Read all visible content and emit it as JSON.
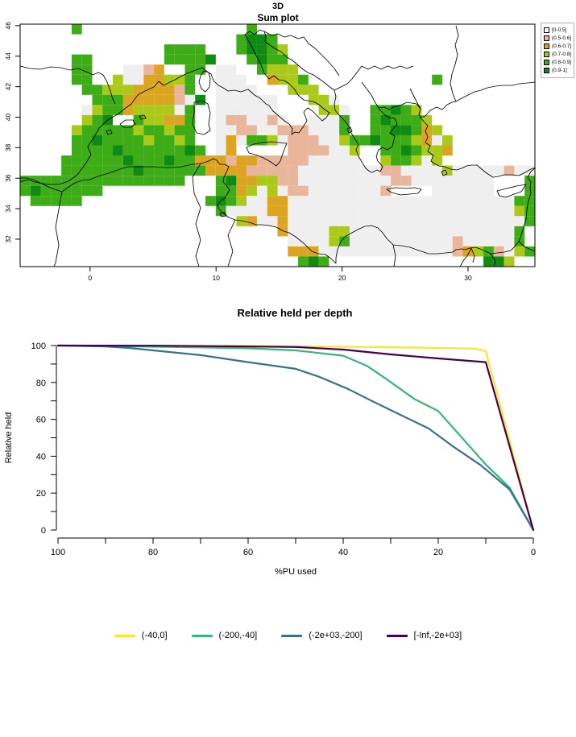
{
  "map": {
    "title_line1": "3D",
    "title_line2": "Sum plot",
    "x_ticks": [
      0,
      10,
      20,
      30
    ],
    "y_ticks": [
      46,
      44,
      42,
      40,
      38,
      36,
      34,
      32
    ],
    "palette": {
      "W": "#EFEFEF",
      "S": "#E9B59B",
      "O": "#DCA521",
      "Y": "#ABC918",
      "G": "#3EAC16",
      "D": "#0F8A12"
    },
    "legend": [
      {
        "label": "[0-0.5]",
        "color": "#FFFFFF"
      },
      {
        "label": "(0.5-0.6]",
        "color": "#E9B59B"
      },
      {
        "label": "(0.6-0.7]",
        "color": "#DCA521"
      },
      {
        "label": "(0.7-0.8]",
        "color": "#ABC918"
      },
      {
        "label": "(0.8-0.9]",
        "color": "#3EAC16"
      },
      {
        "label": "(0.9-1]",
        "color": "#0F8A12"
      }
    ],
    "grid": [
      [
        ".....G....",
        "..........",
        "..G.......",
        "..........",
        ".........."
      ],
      [
        "..........",
        "..........",
        ".GDDG.....",
        "..........",
        ".........."
      ],
      [
        "..........",
        "....GGGG..",
        ".GDDGY....",
        "..........",
        ".........."
      ],
      [
        ".....GG...",
        "....GGGGD.",
        "..GDGG....",
        "..........",
        ".........."
      ],
      [
        ".....GG...",
        "WWSO..GG.W",
        "W..GYYY...",
        "..........",
        ".........."
      ],
      [
        ".....GG..Y",
        "WWOOYYG..W",
        "WW..OYYG..",
        "..........",
        "G........."
      ],
      [
        "......GGYY",
        "YOOOOSG..W",
        "WWW...YYY.",
        "..........",
        ".........."
      ],
      [
        ".......GGG",
        "OOOOOSWD.W",
        "WWWWW...YY",
        "W.........",
        ".........."
      ],
      [
        "......WYGG",
        "OYYYYWG..W",
        "WWWWW....Y",
        "YW..GGDGY.",
        ".........."
      ],
      [
        "......YGD.",
        ".GYYOOG..W",
        "SSWWSW..WW",
        "WG..GDGGGY",
        ".........."
      ],
      [
        ".....YGGGG",
        "GYGGYGG..W",
        "WSSWWSSSWW",
        "WG..GGDDGO",
        "Y........."
      ],
      [
        ".....GGDGG",
        "GGYGGYG..W",
        "OWGGYWSSSW",
        "WYGGDGGGYO",
        "WY........"
      ],
      [
        ".....GGGGD",
        "GGGGGGDG.W",
        "O.....SSSS",
        "WWY..GGDGY",
        "YO........"
      ],
      [
        "....GGGGGG",
        "DGGGDGGOOO",
        "SOOSSSSSWW",
        "WWW..YGGYW",
        "Y........."
      ],
      [
        "....GGGGGG",
        "GDGGGGGGOO",
        "OOSSSSSWWW",
        "WWWWWSSWWW",
        "WYWWWWWSWW"
      ],
      [
        "GGGGGGGGGG",
        "GGGGGG...G",
        "DOOYYSSWWW",
        "WWWWWWSSWW",
        "WWWWWW...G"
      ],
      [
        "GDGGGGGG..",
        ".........G",
        "GOYWYWSSWW",
        "WWWWWS....",
        "WWWWWW...G"
      ],
      [
        ".GGGGG....",
        "........GD",
        "GYWWOOWWWW",
        "WWWWWWWWWW",
        "WWWWWWWWGG"
      ],
      [
        "..........",
        ".........G",
        "WWWWOOWWWW",
        "WWWWWWWWWW",
        "WWWWWWWWYG"
      ],
      [
        "..........",
        "..........",
        ".YOWWOWWWW",
        "WWWWWWWWWW",
        "WWWWWWWWWG"
      ],
      [
        "..........",
        "..........",
        ".....OWWWW",
        "YYWWWWWWWW",
        "WWWWWWWWG."
      ],
      [
        "..........",
        "..........",
        "......WWWW",
        "YGWWWWWWWW",
        "WWSWWWWWG."
      ],
      [
        "..........",
        "..........",
        "......OOOW",
        "WWWWWWWWWW",
        "WWSOYGSWYG"
      ],
      [
        "..........",
        "..........",
        ".......GDG",
        "..........",
        ".....DDY.."
      ]
    ]
  },
  "chart": {
    "title": "Relative held per depth",
    "xlabel": "%PU used",
    "ylabel": "Relative held",
    "x_tick_labels": [
      100,
      80,
      60,
      40,
      20,
      0
    ],
    "y_tick_labels": [
      0,
      20,
      40,
      60,
      80,
      100
    ]
  },
  "chart_data": {
    "type": "line",
    "title": "Relative held per depth",
    "xlabel": "%PU used",
    "ylabel": "Relative held",
    "x_axis_reversed": true,
    "xlim": [
      100,
      0
    ],
    "ylim": [
      0,
      100
    ],
    "grid": false,
    "legend_position": "bottom",
    "series": [
      {
        "name": "(-40,0]",
        "color": "#FDE333",
        "points": [
          [
            100,
            100
          ],
          [
            80,
            99.9
          ],
          [
            60,
            99.7
          ],
          [
            50,
            99.6
          ],
          [
            40,
            99.4
          ],
          [
            30,
            99.1
          ],
          [
            20,
            98.7
          ],
          [
            12,
            98.3
          ],
          [
            10,
            97
          ],
          [
            0,
            0
          ]
        ]
      },
      {
        "name": "(-200,-40]",
        "color": "#35B779",
        "points": [
          [
            100,
            100
          ],
          [
            90,
            99.8
          ],
          [
            80,
            99.4
          ],
          [
            70,
            99
          ],
          [
            60,
            98.5
          ],
          [
            50,
            97.4
          ],
          [
            40,
            94.5
          ],
          [
            35,
            89
          ],
          [
            31,
            82
          ],
          [
            25,
            71
          ],
          [
            20,
            64.5
          ],
          [
            15,
            50
          ],
          [
            10,
            35.5
          ],
          [
            5,
            23
          ],
          [
            0,
            0
          ]
        ]
      },
      {
        "name": "(-2e+03,-200]",
        "color": "#38718F",
        "points": [
          [
            100,
            100
          ],
          [
            90,
            99.5
          ],
          [
            85,
            98.7
          ],
          [
            80,
            97.4
          ],
          [
            70,
            94.8
          ],
          [
            60,
            91
          ],
          [
            50,
            87.4
          ],
          [
            45,
            83
          ],
          [
            39,
            76.5
          ],
          [
            34,
            70
          ],
          [
            28,
            62.5
          ],
          [
            22,
            55
          ],
          [
            17,
            45.5
          ],
          [
            11,
            35
          ],
          [
            5,
            22
          ],
          [
            0,
            0
          ]
        ]
      },
      {
        "name": "[-Inf,-2e+03]",
        "color": "#440154",
        "points": [
          [
            100,
            100
          ],
          [
            80,
            99.9
          ],
          [
            60,
            99.5
          ],
          [
            50,
            99.2
          ],
          [
            40,
            97.8
          ],
          [
            30,
            95.2
          ],
          [
            20,
            93
          ],
          [
            10,
            91
          ],
          [
            0,
            0
          ]
        ]
      }
    ]
  }
}
